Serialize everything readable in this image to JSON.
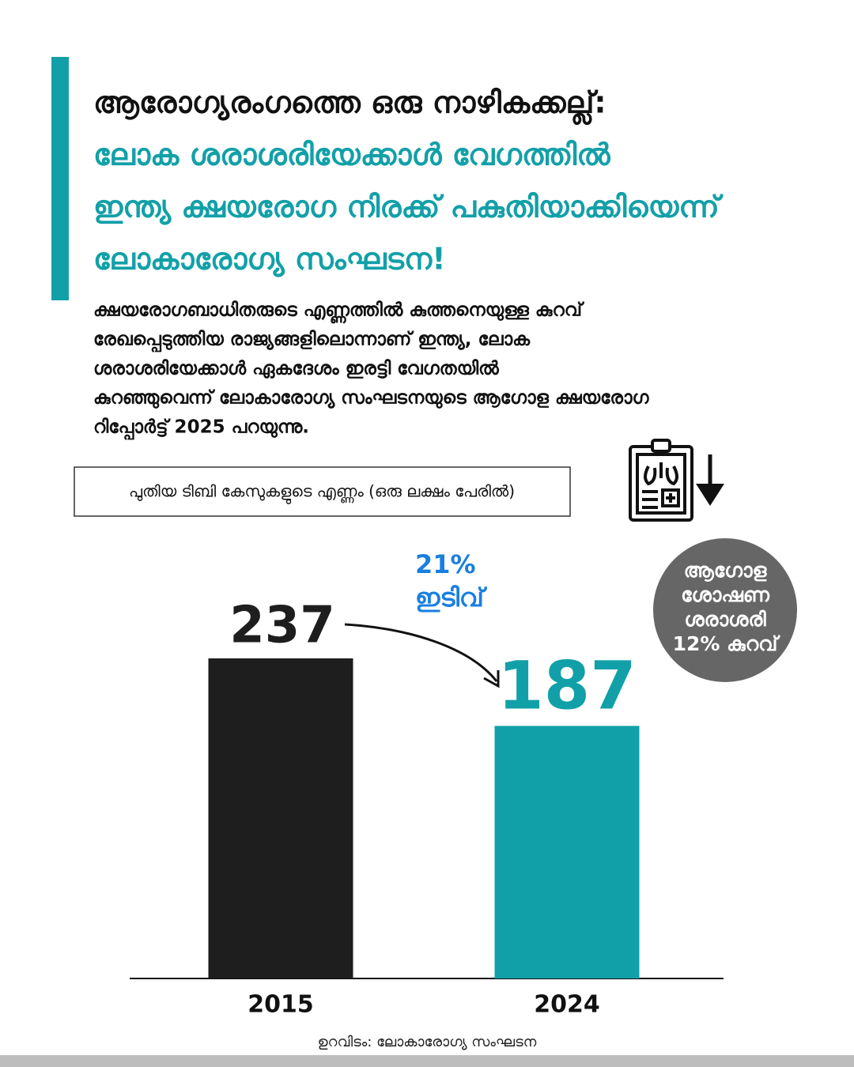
{
  "title": "ആരോഗ്യരംഗത്തെ ഒരു നാഴികക്കല്ല്:",
  "subtitle_lines": [
    "ലോക ശരാശരിയേക്കാൾ വേഗത്തിൽ",
    "ഇന്ത്യ ക്ഷയരോഗ നിരക്ക് പകുതിയാക്കിയെന്ന്",
    "ലോകാരോഗ്യ സംഘടന!"
  ],
  "body_lines": [
    "ക്ഷയരോഗബാധിതരുടെ എണ്ണത്തിൽ കുത്തനെയുള്ള കുറവ്",
    "രേഖപ്പെടുത്തിയ രാജ്യങ്ങളിലൊന്നാണ് ഇന്ത്യ, ലോക",
    "ശരാശരിയേക്കാൾ  ഏകദേശം ഇരട്ടി വേഗതയിൽ",
    "കുറഞ്ഞുവെന്ന് ലോകാരോഗ്യ സംഘടനയുടെ ആഗോള ക്ഷയരോഗ",
    "റിപ്പോർട്ട് 2025 പറയുന്നു."
  ],
  "chart_data": {
    "type": "bar",
    "title": "പുതിയ ടിബി കേസുകളുടെ എണ്ണം (ഒരു ലക്ഷം പേരിൽ)",
    "categories": [
      "2015",
      "2024"
    ],
    "values": [
      237,
      187
    ],
    "colors": [
      "#1e1e1e",
      "#12a0a8"
    ],
    "ylim": [
      0,
      237
    ],
    "annotation_lines": [
      "21%",
      "ഇടിവ്"
    ],
    "callout_lines": [
      "ആഗോള",
      "ശോഷണ",
      "ശരാശരി",
      "12% കുറവ്"
    ]
  },
  "source": "ഉറവിടം: ലോകാരോഗ്യ സംഘടന"
}
